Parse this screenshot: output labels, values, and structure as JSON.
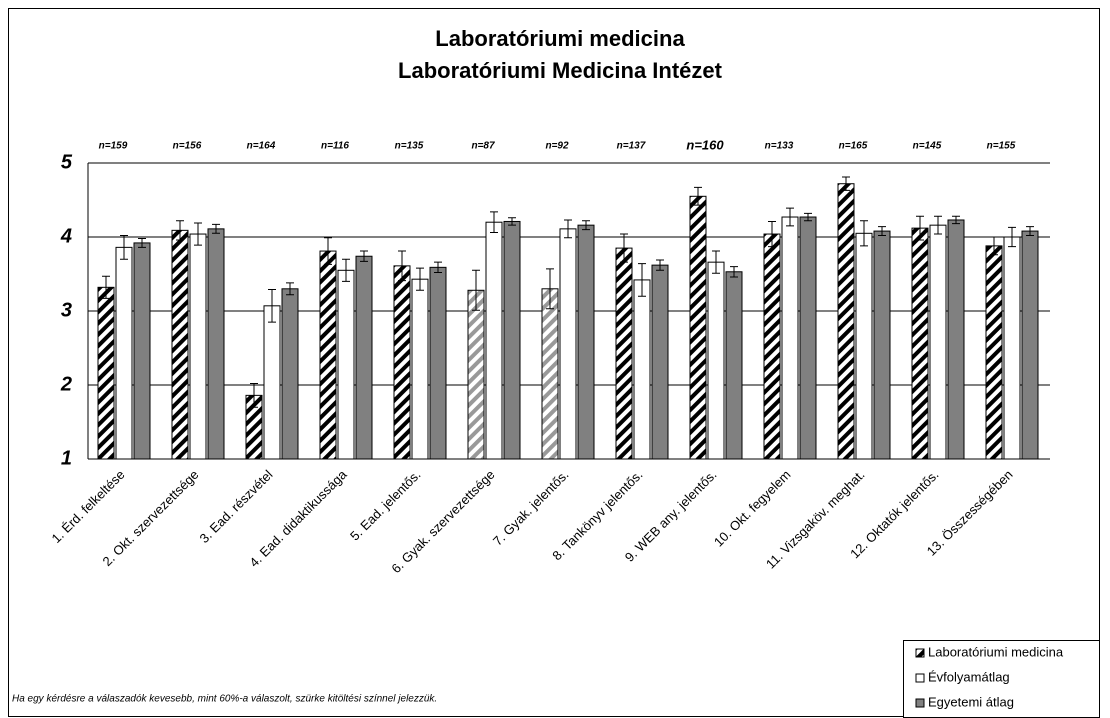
{
  "chart_data": {
    "type": "bar",
    "title": "Laboratóriumi medicina",
    "subtitle": "Laboratóriumi Medicina Intézet",
    "note": "Ha egy kérdésre a válaszadók kevesebb, mint 60%-a válaszolt, szürke kitöltési színnel jelezzük.",
    "n_labels": [
      "n=159",
      "n=156",
      "n=164",
      "n=116",
      "n=135",
      "n=87",
      "n=92",
      "n=137",
      "n=160",
      "n=133",
      "n=165",
      "n=145",
      "n=155"
    ],
    "categories": [
      "1. Érd. felkeltése",
      "2. Okt. szervezettsége",
      "3. Ead. részvétel",
      "4. Ead. didaktikussága",
      "5. Ead. jelentős.",
      "6. Gyak. szervezettsége",
      "7. Gyak. jelentős.",
      "8. Tankönyv jelentős.",
      "9. WEB any. jelentős.",
      "10. Okt. fegyelem",
      "11. Vizsgaköv. meghat.",
      "12. Oktatók jelentős.",
      "13. Összességében"
    ],
    "series": [
      {
        "name": "Laboratóriumi medicina",
        "color": "#000000",
        "point_colors": [
          "#000000",
          "#000000",
          "#000000",
          "#000000",
          "#000000",
          "#999999",
          "#999999",
          "#000000",
          "#000000",
          "#000000",
          "#000000",
          "#000000",
          "#000000"
        ],
        "values": [
          3.32,
          4.09,
          1.86,
          3.81,
          3.61,
          3.28,
          3.3,
          3.85,
          4.55,
          4.04,
          4.72,
          4.12,
          3.88
        ],
        "errors": [
          0.15,
          0.13,
          0.16,
          0.18,
          0.2,
          0.27,
          0.27,
          0.19,
          0.12,
          0.17,
          0.09,
          0.16,
          0.12
        ]
      },
      {
        "name": "Évfolyamátlag",
        "color": "#ffffff",
        "values": [
          3.86,
          4.04,
          3.07,
          3.55,
          3.43,
          4.2,
          4.11,
          3.42,
          3.66,
          4.27,
          4.05,
          4.16,
          4.0
        ],
        "errors": [
          0.16,
          0.15,
          0.22,
          0.15,
          0.15,
          0.14,
          0.12,
          0.22,
          0.15,
          0.12,
          0.17,
          0.12,
          0.13
        ]
      },
      {
        "name": "Egyetemi átlag",
        "color": "#808080",
        "values": [
          3.92,
          4.11,
          3.3,
          3.74,
          3.59,
          4.21,
          4.16,
          3.62,
          3.53,
          4.27,
          4.08,
          4.23,
          4.08
        ],
        "errors": [
          0.06,
          0.06,
          0.08,
          0.07,
          0.07,
          0.05,
          0.06,
          0.07,
          0.07,
          0.05,
          0.06,
          0.05,
          0.06
        ]
      }
    ],
    "ylim": [
      1,
      5
    ],
    "yticks": [
      1,
      2,
      3,
      4,
      5
    ],
    "grid": true,
    "legend": "bottom-right"
  }
}
